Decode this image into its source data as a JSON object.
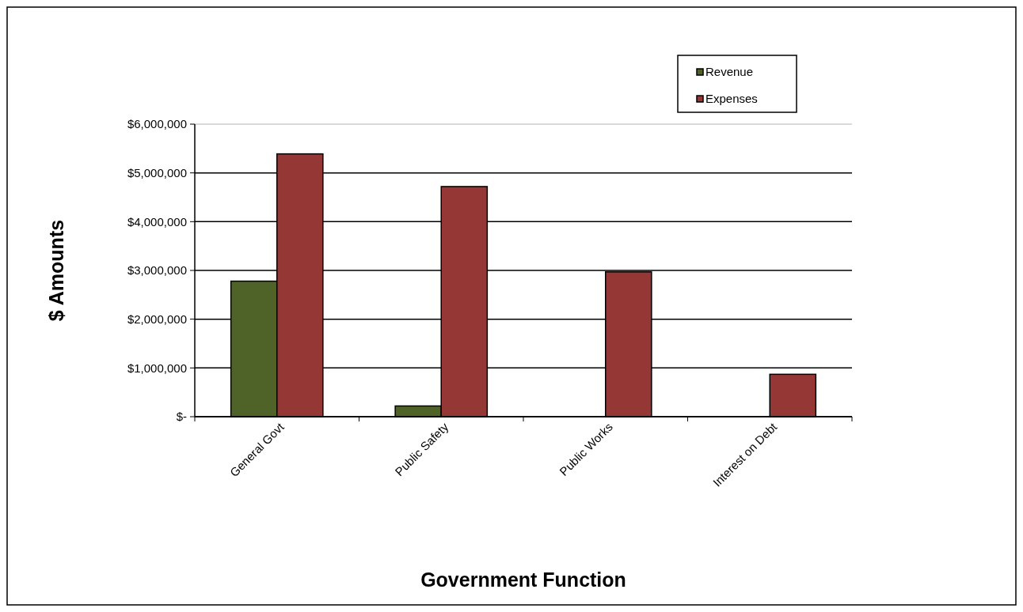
{
  "chart_data": {
    "type": "bar",
    "xlabel": "Government  Function",
    "ylabel": "$ Amounts",
    "categories": [
      "General Govt",
      "Public Safety",
      "Public Works",
      "Interest on Debt"
    ],
    "series": [
      {
        "name": "Revenue",
        "color": "#4f6228",
        "values": [
          2780000,
          220000,
          0,
          0
        ]
      },
      {
        "name": "Expenses",
        "color": "#953735",
        "values": [
          5390000,
          4720000,
          2970000,
          870000
        ]
      }
    ],
    "ylim": [
      0,
      6000000
    ],
    "yticks": [
      {
        "value": 0,
        "label": "$-"
      },
      {
        "value": 1000000,
        "label": "$1,000,000"
      },
      {
        "value": 2000000,
        "label": "$2,000,000"
      },
      {
        "value": 3000000,
        "label": "$3,000,000"
      },
      {
        "value": 4000000,
        "label": "$4,000,000"
      },
      {
        "value": 5000000,
        "label": "$5,000,000"
      },
      {
        "value": 6000000,
        "label": "$6,000,000"
      }
    ],
    "grid": "y",
    "legend": "top right"
  }
}
